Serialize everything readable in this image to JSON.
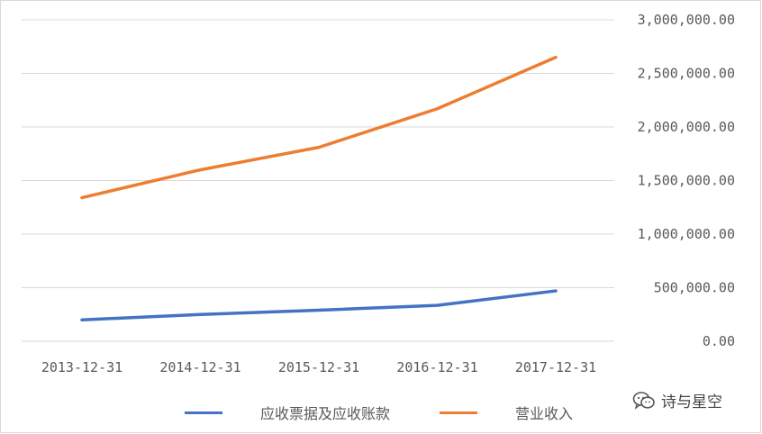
{
  "chart_data": {
    "type": "line",
    "categories": [
      "2013-12-31",
      "2014-12-31",
      "2015-12-31",
      "2016-12-31",
      "2017-12-31"
    ],
    "series": [
      {
        "name": "应收票据及应收账款",
        "color": "#4472c4",
        "values": [
          200000,
          250000,
          290000,
          335000,
          470000
        ]
      },
      {
        "name": "营业收入",
        "color": "#ed7d31",
        "values": [
          1340000,
          1600000,
          1810000,
          2170000,
          2650000
        ]
      }
    ],
    "ylim": [
      0,
      3000000
    ],
    "yticks": [
      0,
      500000,
      1000000,
      1500000,
      2000000,
      2500000,
      3000000
    ],
    "ytick_labels": [
      "0.00",
      "500,000.00",
      "1,000,000.00",
      "1,500,000.00",
      "2,000,000.00",
      "2,500,000.00",
      "3,000,000.00"
    ],
    "y_axis_side": "right",
    "grid": true,
    "legend_position": "bottom"
  },
  "watermark": {
    "text": "诗与星空",
    "icon": "wechat-icon"
  }
}
